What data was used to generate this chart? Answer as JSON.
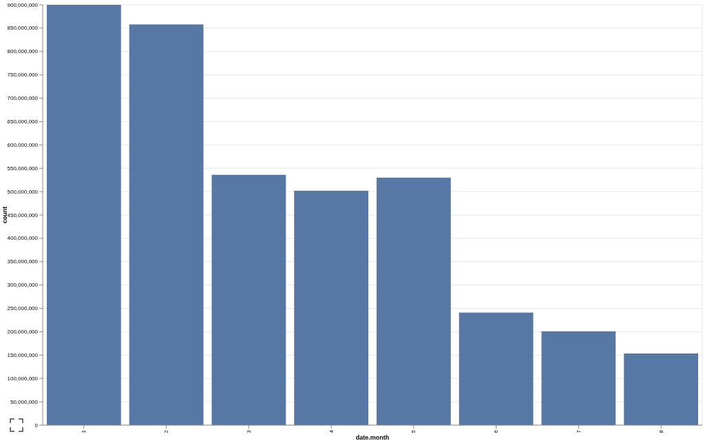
{
  "chart_data": {
    "type": "bar",
    "xlabel": "date.month",
    "ylabel": "count",
    "categories": [
      "1",
      "2",
      "3",
      "4",
      "5",
      "6",
      "7",
      "8"
    ],
    "values": [
      900000000,
      858000000,
      536000000,
      502000000,
      530000000,
      241000000,
      201000000,
      153500000
    ],
    "color": "#5778a4",
    "ylim": [
      0,
      900000000
    ],
    "yticks": [
      0,
      {
        "value": 50000000,
        "label": "50,000,000"
      },
      {
        "value": 100000000,
        "label": "100,000,000"
      },
      {
        "value": 150000000,
        "label": "150,000,000"
      },
      {
        "value": 200000000,
        "label": "200,000,000"
      },
      {
        "value": 250000000,
        "label": "250,000,000"
      },
      {
        "value": 300000000,
        "label": "300,000,000"
      },
      {
        "value": 350000000,
        "label": "350,000,000"
      },
      {
        "value": 400000000,
        "label": "400,000,000"
      },
      {
        "value": 450000000,
        "label": "450,000,000"
      },
      {
        "value": 500000000,
        "label": "500,000,000"
      },
      {
        "value": 550000000,
        "label": "550,000,000"
      },
      {
        "value": 600000000,
        "label": "600,000,000"
      },
      {
        "value": 650000000,
        "label": "650,000,000"
      },
      {
        "value": 700000000,
        "label": "700,000,000"
      },
      {
        "value": 750000000,
        "label": "750,000,000"
      },
      {
        "value": 800000000,
        "label": "800,000,000"
      },
      {
        "value": 850000000,
        "label": "850,000,000"
      },
      {
        "value": 900000000,
        "label": "900,000,000"
      }
    ],
    "grid": true
  }
}
